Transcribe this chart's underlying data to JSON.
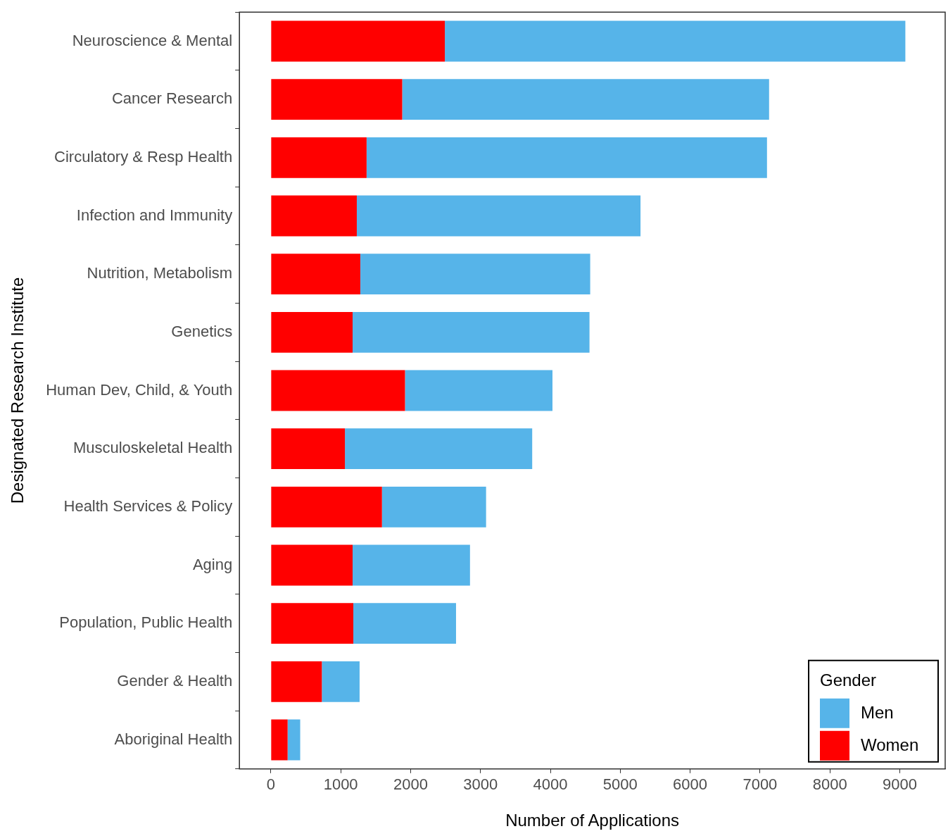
{
  "chart_data": {
    "type": "bar",
    "orientation": "horizontal",
    "stacked": true,
    "xlabel": "Number of Applications",
    "ylabel": "Designated Research Institute",
    "legend_title": "Gender",
    "categories": [
      "Neuroscience & Mental",
      "Cancer Research",
      "Circulatory & Resp Health",
      "Infection and Immunity",
      "Nutrition, Metabolism",
      "Genetics",
      "Human Dev, Child, & Youth",
      "Musculoskeletal Health",
      "Health Services & Policy",
      "Aging",
      "Population, Public Health",
      "Gender & Health",
      "Aboriginal Health"
    ],
    "series": [
      {
        "name": "Women",
        "color": "#ff0000",
        "values": [
          2490,
          1880,
          1370,
          1230,
          1280,
          1170,
          1920,
          1060,
          1590,
          1170,
          1180,
          730,
          240
        ]
      },
      {
        "name": "Men",
        "color": "#56b4e9",
        "values": [
          6590,
          5250,
          5730,
          4060,
          3290,
          3390,
          2110,
          2680,
          1490,
          1680,
          1470,
          540,
          180
        ]
      }
    ],
    "xlim": [
      -450,
      9650
    ],
    "xticks": [
      0,
      1000,
      2000,
      3000,
      4000,
      5000,
      6000,
      7000,
      8000,
      9000
    ],
    "grid": false,
    "legend": "bottom right"
  }
}
